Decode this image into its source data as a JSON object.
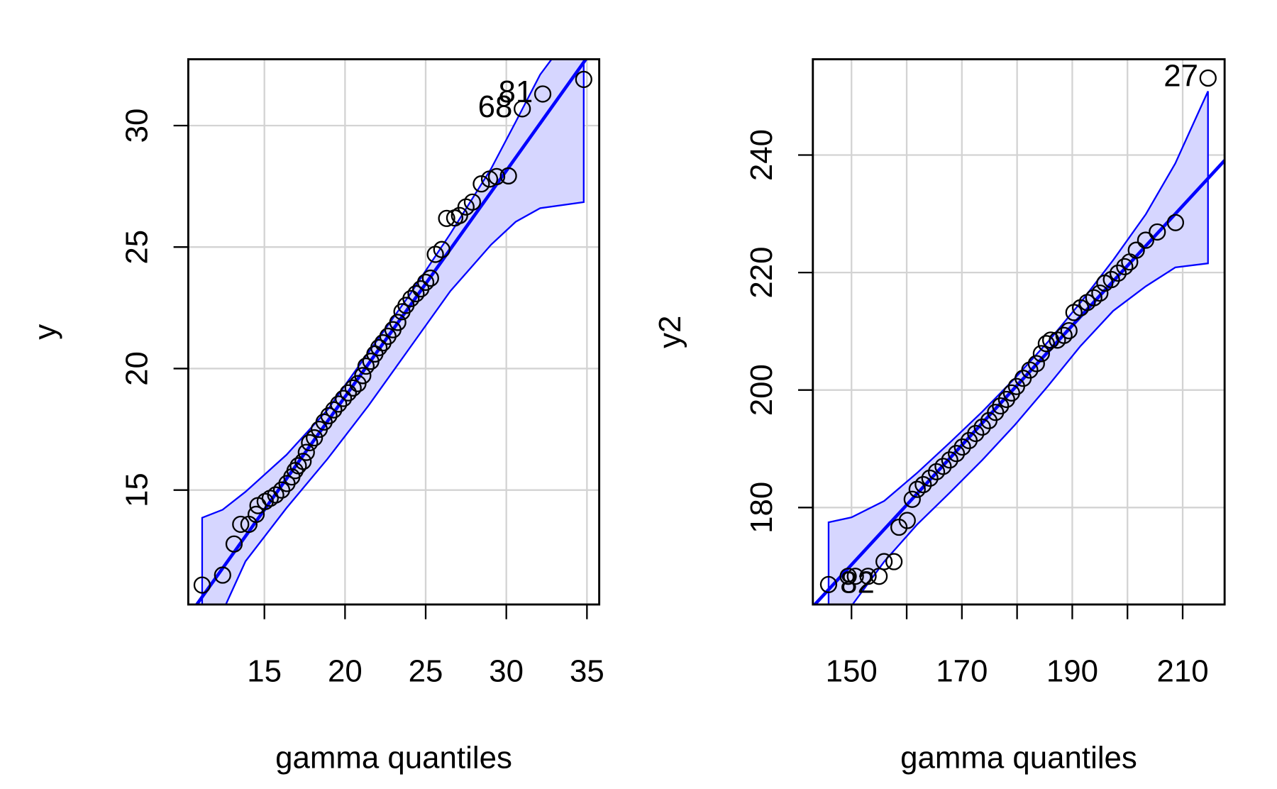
{
  "chart_data": [
    {
      "type": "scatter",
      "xlabel": "gamma quantiles",
      "ylabel": "y",
      "color": "#000000",
      "grid": true,
      "x": [
        11.14,
        12.41,
        13.12,
        13.53,
        14.04,
        14.49,
        14.6,
        15.05,
        15.36,
        15.7,
        16.07,
        16.4,
        16.7,
        16.9,
        17.1,
        17.4,
        17.6,
        17.8,
        18.1,
        18.4,
        18.7,
        19.0,
        19.3,
        19.6,
        19.9,
        20.2,
        20.5,
        20.8,
        21.1,
        21.3,
        21.6,
        21.85,
        22.1,
        22.35,
        22.66,
        22.97,
        23.27,
        23.53,
        23.78,
        24.09,
        24.4,
        24.7,
        25.0,
        25.3,
        25.6,
        26.0,
        26.3,
        26.8,
        27.1,
        27.5,
        27.9,
        28.45,
        28.96,
        29.4,
        30.13,
        30.99,
        32.26,
        34.8
      ],
      "values": [
        11.09,
        11.5,
        12.78,
        13.59,
        13.59,
        14.0,
        14.36,
        14.53,
        14.66,
        14.8,
        15.0,
        15.27,
        15.54,
        15.8,
        16.0,
        16.18,
        16.55,
        16.95,
        17.15,
        17.5,
        17.8,
        18.06,
        18.3,
        18.54,
        18.77,
        19.0,
        19.2,
        19.38,
        19.71,
        20.1,
        20.3,
        20.6,
        20.86,
        21.06,
        21.33,
        21.6,
        21.9,
        22.34,
        22.6,
        22.88,
        23.08,
        23.28,
        23.55,
        23.72,
        24.7,
        24.9,
        26.18,
        26.2,
        26.3,
        26.65,
        26.85,
        27.6,
        27.8,
        27.9,
        27.93,
        30.69,
        31.3,
        31.9
      ],
      "point_labels": [
        null,
        null,
        null,
        null,
        null,
        null,
        null,
        null,
        null,
        null,
        null,
        null,
        null,
        null,
        null,
        null,
        null,
        null,
        null,
        null,
        null,
        null,
        null,
        null,
        null,
        null,
        null,
        null,
        null,
        null,
        null,
        null,
        null,
        null,
        null,
        null,
        null,
        null,
        null,
        null,
        null,
        null,
        null,
        null,
        null,
        null,
        null,
        null,
        null,
        null,
        null,
        null,
        null,
        null,
        null,
        "68",
        "81",
        null
      ],
      "reference_line": {
        "intercept": 0.24,
        "slope": 0.93,
        "color": "#0000ff"
      },
      "envelope": {
        "color": "#0000ff",
        "fill": "#d6d6ff",
        "x": [
          11.14,
          12.41,
          13.83,
          16.37,
          18.91,
          21.45,
          23.98,
          26.52,
          29.06,
          30.58,
          32.1,
          34.8
        ],
        "upper": [
          13.86,
          14.19,
          14.93,
          16.45,
          18.3,
          20.66,
          23.01,
          25.54,
          28.23,
          30.15,
          32.1,
          34.5
        ],
        "lower": [
          9.0,
          10.0,
          12.07,
          14.26,
          16.28,
          18.47,
          20.82,
          23.18,
          25.1,
          26.04,
          26.6,
          26.85
        ]
      },
      "xlim": [
        10.28,
        35.76
      ],
      "ylim": [
        10.29,
        32.73
      ],
      "xticks": [
        15,
        20,
        25,
        30,
        35
      ],
      "yticks": [
        15,
        20,
        25,
        30
      ]
    },
    {
      "type": "scatter",
      "xlabel": "gamma quantiles",
      "ylabel": "y2",
      "color": "#000000",
      "grid": true,
      "x": [
        145.85,
        149.4,
        150.7,
        153.0,
        155.0,
        155.9,
        157.7,
        158.6,
        160.1,
        161.0,
        161.9,
        163.0,
        164.2,
        165.4,
        166.6,
        167.8,
        169.0,
        170.1,
        171.3,
        172.5,
        173.7,
        174.9,
        176.1,
        177.0,
        178.1,
        179.0,
        179.9,
        181.1,
        182.3,
        183.5,
        184.4,
        185.3,
        186.1,
        187.3,
        188.5,
        189.4,
        190.3,
        191.5,
        192.7,
        193.9,
        195.0,
        195.9,
        197.1,
        198.3,
        199.5,
        200.4,
        201.6,
        203.3,
        205.4,
        208.7,
        214.6
      ],
      "values": [
        166.9,
        168.3,
        168.3,
        168.3,
        168.3,
        170.8,
        170.8,
        176.65,
        177.8,
        181.4,
        183.1,
        183.9,
        185.0,
        186.1,
        187.0,
        188.1,
        189.2,
        190.3,
        191.4,
        192.6,
        193.7,
        194.8,
        196.2,
        197.3,
        198.4,
        199.5,
        200.6,
        202.0,
        203.4,
        204.5,
        206.2,
        207.9,
        208.5,
        208.5,
        209.3,
        210.1,
        213.2,
        214.0,
        214.9,
        215.7,
        216.5,
        218.2,
        218.8,
        219.9,
        221.0,
        221.8,
        223.8,
        225.5,
        226.9,
        228.5,
        253.1
      ],
      "point_labels": [
        "82",
        null,
        null,
        null,
        null,
        null,
        null,
        null,
        null,
        null,
        null,
        null,
        null,
        null,
        null,
        null,
        null,
        null,
        null,
        null,
        null,
        null,
        null,
        null,
        null,
        null,
        null,
        null,
        null,
        null,
        null,
        null,
        null,
        null,
        null,
        null,
        null,
        null,
        null,
        null,
        null,
        null,
        null,
        null,
        null,
        null,
        null,
        null,
        null,
        null,
        "27"
      ],
      "reference_line": {
        "intercept": 17.56,
        "slope": 1.018,
        "color": "#0000ff"
      },
      "envelope": {
        "color": "#0000ff",
        "fill": "#d6d6ff",
        "x": [
          145.85,
          150,
          155.93,
          161.85,
          167.78,
          173.7,
          179.63,
          185.56,
          191.48,
          197.41,
          203.33,
          208.67,
          214.59
        ],
        "upper": [
          177.49,
          178.33,
          181.12,
          185.86,
          191.02,
          196.32,
          202.04,
          208.17,
          214.87,
          222.12,
          229.93,
          238.58,
          250.85
        ],
        "lower": [
          157.68,
          163.26,
          170.8,
          177.07,
          182.51,
          188.09,
          194.09,
          200.64,
          207.48,
          213.47,
          217.66,
          220.87,
          221.56
        ]
      },
      "xlim": [
        143.0,
        217.6
      ],
      "ylim": [
        163.5,
        256.3
      ],
      "xticks": [
        150,
        {
          "value": 160,
          "label": null
        },
        170,
        {
          "value": 180,
          "label": null
        },
        190,
        {
          "value": 200,
          "label": null
        },
        210
      ],
      "yticks": [
        180,
        200,
        220,
        240
      ]
    }
  ]
}
